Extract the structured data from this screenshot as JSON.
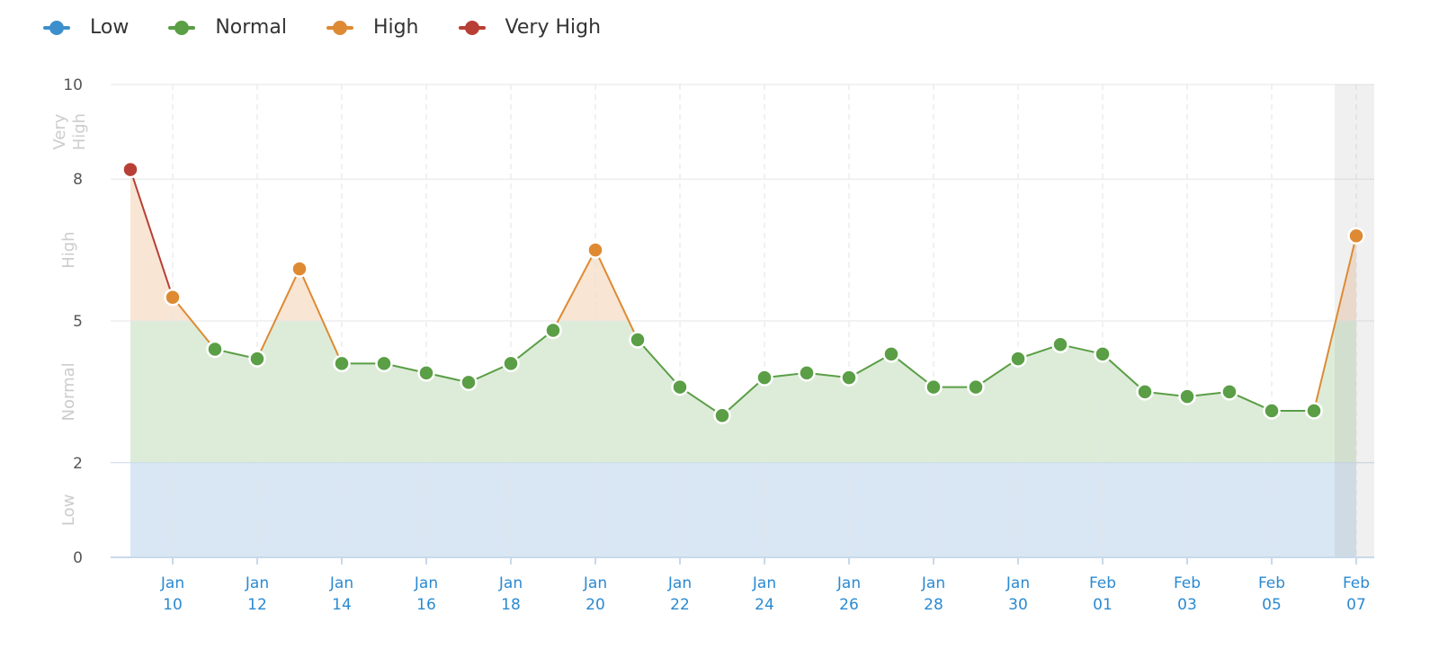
{
  "chart_data": {
    "type": "area",
    "title": "",
    "xlabel": "",
    "ylabel": "",
    "ylim": [
      0,
      10
    ],
    "y_ticks": [
      "0",
      "2",
      "5",
      "8",
      "10"
    ],
    "grid": true,
    "legend_position": "top-left",
    "legend": [
      {
        "name": "Low",
        "color": "#3d8fcc"
      },
      {
        "name": "Normal",
        "color": "#5a9e45"
      },
      {
        "name": "High",
        "color": "#de8a33"
      },
      {
        "name": "Very High",
        "color": "#b83f35"
      }
    ],
    "bands": [
      {
        "label": "Low",
        "from": 0,
        "to": 2,
        "color": "#d8e7f3"
      },
      {
        "label": "Normal",
        "from": 2,
        "to": 5,
        "color": "#ddecd9"
      },
      {
        "label": "High",
        "from": 5,
        "to": 8,
        "color": "#f8e5d3"
      },
      {
        "label": "Very High",
        "from": 8,
        "to": 10,
        "color": "#f5d9d6"
      }
    ],
    "x_tick_labels": [
      {
        "month": "Jan",
        "day": "10"
      },
      {
        "month": "Jan",
        "day": "12"
      },
      {
        "month": "Jan",
        "day": "14"
      },
      {
        "month": "Jan",
        "day": "16"
      },
      {
        "month": "Jan",
        "day": "18"
      },
      {
        "month": "Jan",
        "day": "20"
      },
      {
        "month": "Jan",
        "day": "22"
      },
      {
        "month": "Jan",
        "day": "24"
      },
      {
        "month": "Jan",
        "day": "26"
      },
      {
        "month": "Jan",
        "day": "28"
      },
      {
        "month": "Jan",
        "day": "30"
      },
      {
        "month": "Feb",
        "day": "01"
      },
      {
        "month": "Feb",
        "day": "03"
      },
      {
        "month": "Feb",
        "day": "05"
      },
      {
        "month": "Feb",
        "day": "07"
      }
    ],
    "x": [
      "2024-01-09",
      "2024-01-10",
      "2024-01-11",
      "2024-01-12",
      "2024-01-13",
      "2024-01-14",
      "2024-01-15",
      "2024-01-16",
      "2024-01-17",
      "2024-01-18",
      "2024-01-19",
      "2024-01-20",
      "2024-01-21",
      "2024-01-22",
      "2024-01-23",
      "2024-01-24",
      "2024-01-25",
      "2024-01-26",
      "2024-01-27",
      "2024-01-28",
      "2024-01-29",
      "2024-01-30",
      "2024-01-31",
      "2024-02-01",
      "2024-02-02",
      "2024-02-03",
      "2024-02-04",
      "2024-02-05",
      "2024-02-06",
      "2024-02-07"
    ],
    "values": [
      8.2,
      5.5,
      4.4,
      4.2,
      6.1,
      4.1,
      4.1,
      3.9,
      3.7,
      4.1,
      4.8,
      6.5,
      4.6,
      3.6,
      3.0,
      3.8,
      3.9,
      3.8,
      4.3,
      3.6,
      3.6,
      4.2,
      4.5,
      4.3,
      3.5,
      3.4,
      3.5,
      3.1,
      3.1,
      6.8
    ],
    "highlighted_date": "2024-02-07"
  }
}
